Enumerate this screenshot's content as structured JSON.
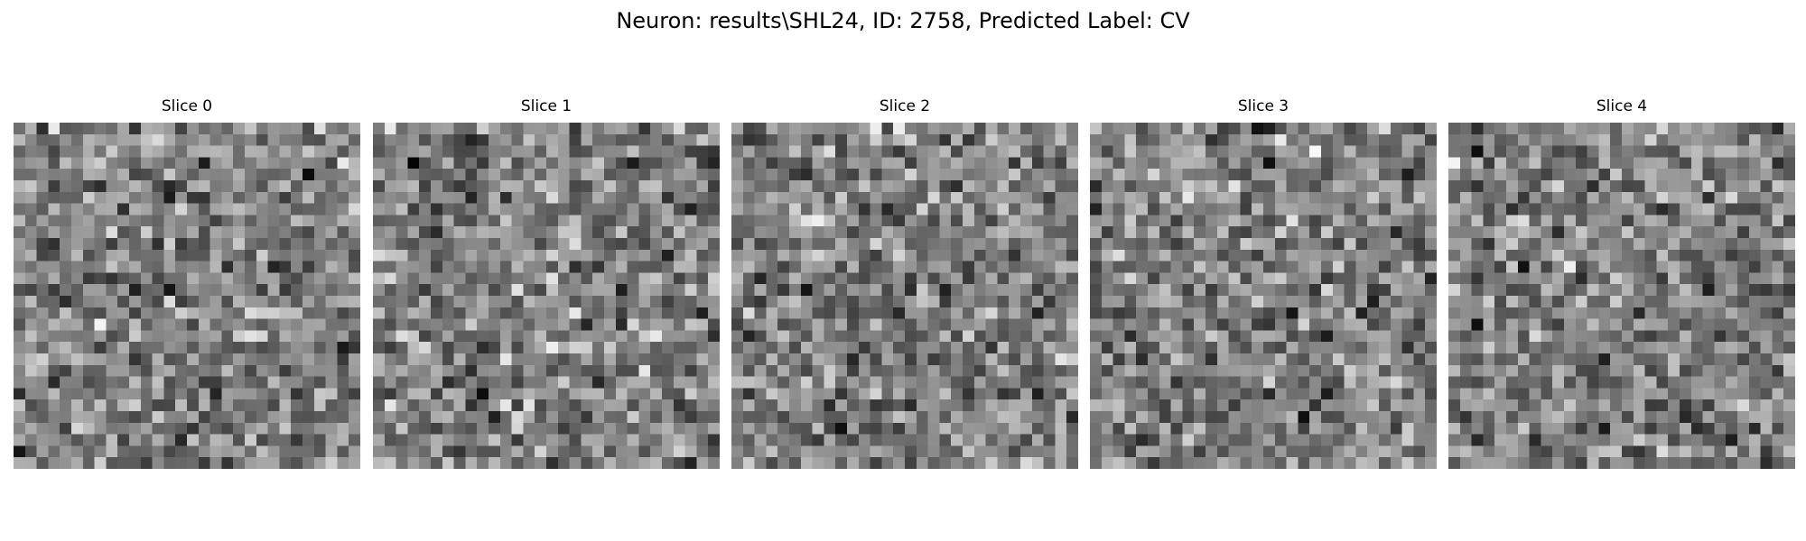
{
  "figure": {
    "title": "Neuron: results\\SHL24, ID: 2758, Predicted Label: CV",
    "colormap": "gray"
  },
  "slices": [
    {
      "title": "Slice 0",
      "grid_size": 30,
      "seed": 2758
    },
    {
      "title": "Slice 1",
      "grid_size": 30,
      "seed": 2759
    },
    {
      "title": "Slice 2",
      "grid_size": 30,
      "seed": 2760
    },
    {
      "title": "Slice 3",
      "grid_size": 30,
      "seed": 2761
    },
    {
      "title": "Slice 4",
      "grid_size": 30,
      "seed": 2762
    }
  ]
}
